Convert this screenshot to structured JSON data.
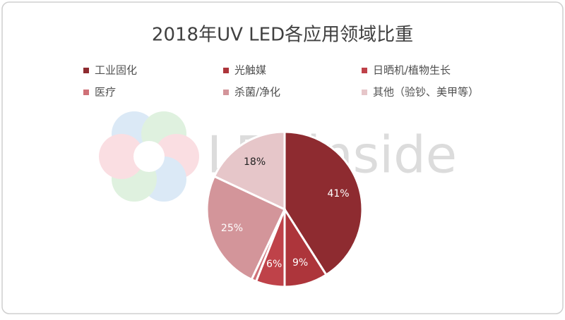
{
  "chart_data": {
    "type": "pie",
    "title": "2018年UV LED各应用领域比重",
    "categories": [
      "工业固化",
      "光触媒",
      "日晒机/植物生长",
      "医疗",
      "杀菌/净化",
      "其他（验钞、美甲等）"
    ],
    "values": [
      41,
      9,
      6,
      1,
      25,
      18
    ],
    "value_labels": [
      "41%",
      "9%",
      "6%",
      null,
      "25%",
      "18%"
    ],
    "colors": [
      "#8e2b30",
      "#ad353b",
      "#bf4249",
      "#cf7077",
      "#d3959a",
      "#e6c6c9"
    ],
    "legend": "top"
  },
  "watermark": "LEDinside"
}
